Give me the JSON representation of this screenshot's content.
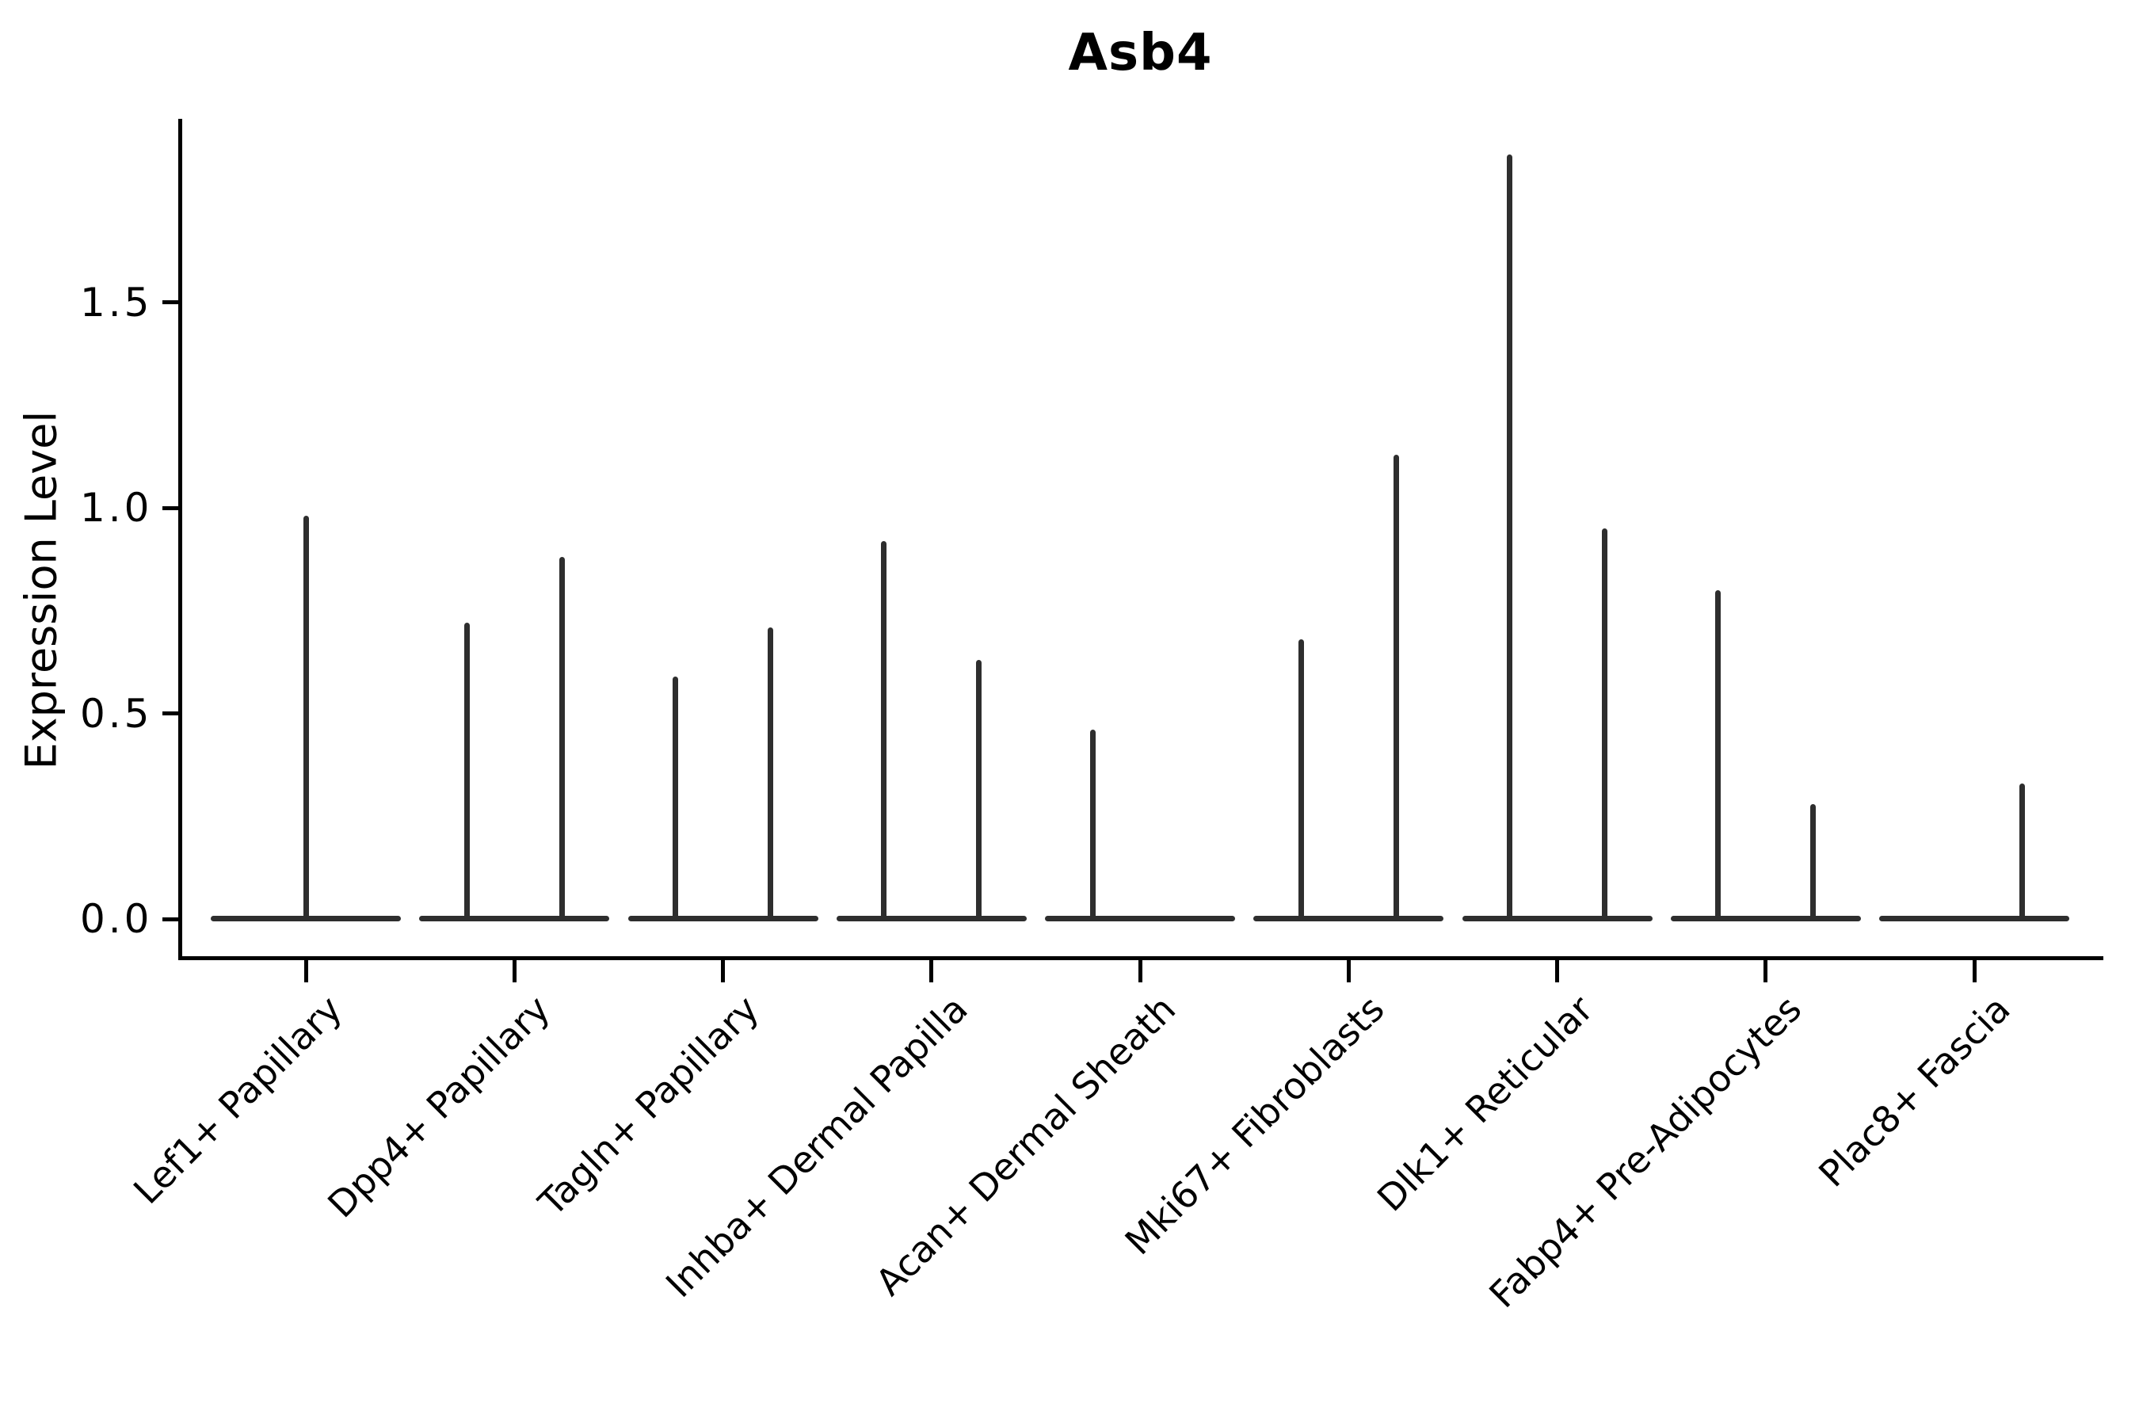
{
  "title": "Asb4",
  "chart_data": {
    "type": "violin",
    "title": "Asb4",
    "xlabel": "",
    "ylabel": "Expression Level",
    "ylim": [
      -0.09,
      1.95
    ],
    "yticks": [
      0.0,
      0.5,
      1.0,
      1.5
    ],
    "ytick_labels": [
      "0.0",
      "0.5",
      "1.0",
      "1.5"
    ],
    "grid": false,
    "legend": null,
    "style": {
      "violin_line_color": "#2e2e2e",
      "axis_color": "#000000",
      "text_color": "#000000",
      "background": "#ffffff"
    },
    "categories": [
      {
        "label": "Lef1+ Papillary",
        "violins": [
          {
            "position": "center",
            "max": 0.98
          }
        ]
      },
      {
        "label": "Dpp4+ Papillary",
        "violins": [
          {
            "position": "left",
            "max": 0.72
          },
          {
            "position": "right",
            "max": 0.88
          }
        ]
      },
      {
        "label": "Tagln+ Papillary",
        "violins": [
          {
            "position": "left",
            "max": 0.59
          },
          {
            "position": "right",
            "max": 0.71
          }
        ]
      },
      {
        "label": "Inhba+ Dermal Papilla",
        "violins": [
          {
            "position": "left",
            "max": 0.92
          },
          {
            "position": "right",
            "max": 0.63
          }
        ]
      },
      {
        "label": "Acan+ Dermal Sheath",
        "violins": [
          {
            "position": "left",
            "max": 0.46
          },
          {
            "position": "right",
            "max": 0
          }
        ]
      },
      {
        "label": "Mki67+ Fibroblasts",
        "violins": [
          {
            "position": "left",
            "max": 0.68
          },
          {
            "position": "right",
            "max": 1.13
          }
        ]
      },
      {
        "label": "Dlk1+ Reticular",
        "violins": [
          {
            "position": "left",
            "max": 1.86
          },
          {
            "position": "right",
            "max": 0.95
          }
        ]
      },
      {
        "label": "Fabp4+ Pre-Adipocytes",
        "violins": [
          {
            "position": "left",
            "max": 0.8
          },
          {
            "position": "right",
            "max": 0.28
          }
        ]
      },
      {
        "label": "Plac8+ Fascia",
        "violins": [
          {
            "position": "left",
            "max": 0
          },
          {
            "position": "right",
            "max": 0.33
          }
        ]
      }
    ]
  }
}
